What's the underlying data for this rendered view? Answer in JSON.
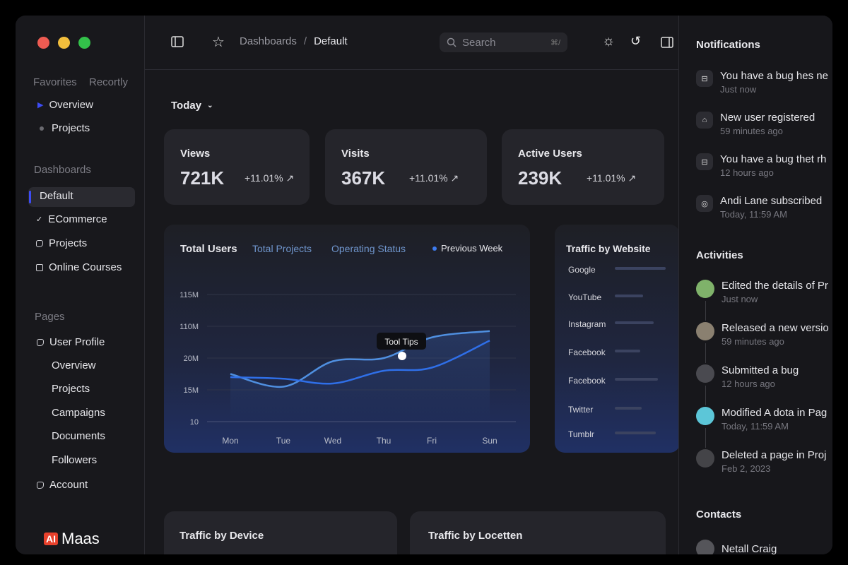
{
  "sidebar": {
    "tabs": [
      "Favorites",
      "Recortly"
    ],
    "favorites": [
      {
        "label": "Overview"
      },
      {
        "label": "Projects"
      }
    ],
    "dashboards_heading": "Dashboards",
    "dashboards": [
      {
        "label": "Default",
        "active": true
      },
      {
        "label": "ECommerce"
      },
      {
        "label": "Projects"
      },
      {
        "label": "Online Courses"
      }
    ],
    "pages_heading": "Pages",
    "pages": {
      "user_profile": "User Profile",
      "sub": [
        "Overview",
        "Projects",
        "Campaigns",
        "Documents",
        "Followers"
      ],
      "account": "Account"
    },
    "logo": {
      "mark": "AI",
      "text": "Maas",
      "color": "#e8412c"
    }
  },
  "header": {
    "breadcrumb": [
      "Dashboards",
      "Default"
    ],
    "separator": "/",
    "search_placeholder": "Search",
    "search_shortcut": "⌘/"
  },
  "main": {
    "period": "Today",
    "stats": [
      {
        "title": "Views",
        "value": "721K",
        "change": "+11.01%"
      },
      {
        "title": "Visits",
        "value": "367K",
        "change": "+11.01%"
      },
      {
        "title": "Active Users",
        "value": "239K",
        "change": "+11.01%"
      }
    ],
    "bottom_cards": [
      "Traffic by Device",
      "Traffic by Locetten"
    ]
  },
  "chart_data": [
    {
      "type": "line",
      "tabs": [
        "Total Users",
        "Total Projects",
        "Operating Status"
      ],
      "legend": "Previous Week",
      "categories": [
        "Mon",
        "Tue",
        "Wed",
        "Thu",
        "Fri",
        "Sun"
      ],
      "y_tick_labels": [
        "10",
        "15M",
        "20M",
        "110M",
        "115M"
      ],
      "ylim": [
        0,
        4
      ],
      "grid": true,
      "tooltip": {
        "label": "Tool Tips",
        "category": "Thu"
      },
      "series": [
        {
          "values": [
            1.5,
            1.1,
            1.9,
            2.0,
            2.65,
            2.85
          ],
          "color": "#4f8fe0"
        },
        {
          "values": [
            1.4,
            1.35,
            1.2,
            1.6,
            1.7,
            2.55
          ],
          "color": "#2f6fe8"
        }
      ],
      "colors": {
        "accent": "#3d7cf0"
      }
    },
    {
      "type": "bar",
      "title": "Traffic by Website",
      "categories": [
        "Google",
        "YouTube",
        "Instagram",
        "Facebook",
        "Facebook",
        "Twitter",
        "Tumblr"
      ],
      "values": [
        0.97,
        0.54,
        0.74,
        0.49,
        0.82,
        0.51,
        0.78
      ]
    }
  ],
  "right": {
    "notifications_heading": "Notifications",
    "notifications": [
      {
        "icon": "bug-icon",
        "text": "You have a bug hes ne",
        "time": "Just now"
      },
      {
        "icon": "user-icon",
        "text": "New user registered",
        "time": "59 minutes ago"
      },
      {
        "icon": "bug-icon",
        "text": "You have a bug thet rh",
        "time": "12 hours ago"
      },
      {
        "icon": "broadcast-icon",
        "text": "Andi Lane subscribed",
        "time": "Today, 11:59 AM"
      }
    ],
    "activities_heading": "Activities",
    "activities": [
      {
        "text": "Edited the details of Pr",
        "time": "Just now",
        "avatar": "#7fb26a"
      },
      {
        "text": "Released a new versio",
        "time": "59 minutes ago",
        "avatar": "#8a8070"
      },
      {
        "text": "Submitted a bug",
        "time": "12 hours ago",
        "avatar": "#4a4a50"
      },
      {
        "text": "Modified A dota in Pag",
        "time": "Today, 11:59 AM",
        "avatar": "#5cc6d8"
      },
      {
        "text": "Deleted a page in Proj",
        "time": "Feb 2, 2023",
        "avatar": "#444448"
      }
    ],
    "contacts_heading": "Contacts",
    "contacts": [
      {
        "name": "Netall Craig"
      }
    ]
  }
}
